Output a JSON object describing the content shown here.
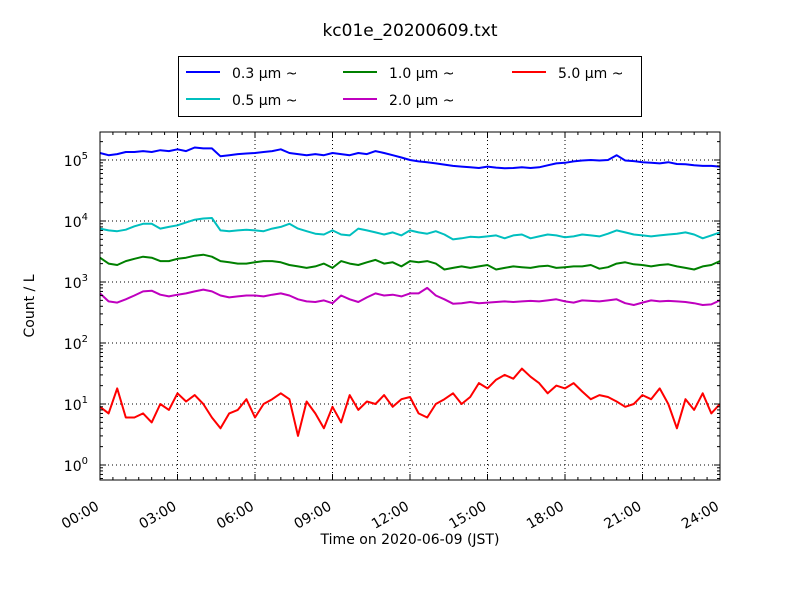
{
  "chart_data": {
    "type": "line",
    "title": "kc01e_20200609.txt",
    "xlabel": "Time on 2020-06-09 (JST)",
    "ylabel": "Count / L",
    "yscale": "log",
    "ylim": [
      0.55,
      300000
    ],
    "xlim_hours": [
      0,
      24
    ],
    "grid": true,
    "legend_position": "top-center (above plot)",
    "x_tick_labels": [
      "00:00",
      "03:00",
      "06:00",
      "09:00",
      "12:00",
      "15:00",
      "18:00",
      "21:00",
      "24:00"
    ],
    "y_tick_labels": [
      {
        "base": "10",
        "exp": "0"
      },
      {
        "base": "10",
        "exp": "1"
      },
      {
        "base": "10",
        "exp": "2"
      },
      {
        "base": "10",
        "exp": "3"
      },
      {
        "base": "10",
        "exp": "4"
      },
      {
        "base": "10",
        "exp": "5"
      }
    ],
    "x_hours_step": 0.3333,
    "series": [
      {
        "name": "0.3 μm ~",
        "color": "#0000ff",
        "values": [
          130000,
          120000,
          125000,
          135000,
          135000,
          140000,
          135000,
          145000,
          140000,
          150000,
          140000,
          160000,
          155000,
          155000,
          115000,
          120000,
          125000,
          128000,
          130000,
          135000,
          140000,
          150000,
          130000,
          125000,
          120000,
          125000,
          120000,
          130000,
          125000,
          120000,
          130000,
          125000,
          140000,
          130000,
          120000,
          110000,
          100000,
          95000,
          92000,
          88000,
          84000,
          80000,
          78000,
          76000,
          74000,
          78000,
          75000,
          73000,
          74000,
          76000,
          74000,
          76000,
          82000,
          88000,
          90000,
          95000,
          98000,
          100000,
          98000,
          100000,
          120000,
          98000,
          96000,
          92000,
          90000,
          88000,
          92000,
          86000,
          85000,
          82000,
          80000,
          80000,
          78000
        ]
      },
      {
        "name": "0.5 μm ~",
        "color": "#00bfbf",
        "values": [
          7500,
          7000,
          6800,
          7200,
          8200,
          9000,
          9000,
          7500,
          8000,
          8500,
          9500,
          10500,
          11000,
          11200,
          7000,
          6800,
          7000,
          7200,
          7000,
          6800,
          7500,
          8000,
          9000,
          7500,
          6800,
          6200,
          6000,
          7000,
          6000,
          5800,
          7500,
          7000,
          6500,
          6000,
          6500,
          5800,
          7000,
          6500,
          6200,
          6800,
          6000,
          5000,
          5200,
          5500,
          5400,
          5600,
          5800,
          5200,
          5800,
          6000,
          5200,
          5600,
          6000,
          5800,
          5400,
          5600,
          6000,
          5800,
          5600,
          6200,
          7000,
          6500,
          6000,
          5800,
          5600,
          5800,
          6000,
          6200,
          6500,
          6000,
          5200,
          5800,
          6500
        ]
      },
      {
        "name": "1.0 μm ~",
        "color": "#008000",
        "values": [
          2500,
          2000,
          1900,
          2200,
          2400,
          2600,
          2500,
          2200,
          2200,
          2400,
          2500,
          2700,
          2800,
          2600,
          2200,
          2100,
          2000,
          2000,
          2100,
          2200,
          2200,
          2100,
          1900,
          1800,
          1700,
          1800,
          2000,
          1700,
          2200,
          2000,
          1900,
          2100,
          2300,
          2000,
          2100,
          1800,
          2200,
          2100,
          2200,
          2000,
          1600,
          1700,
          1800,
          1700,
          1800,
          1900,
          1600,
          1700,
          1800,
          1750,
          1700,
          1800,
          1850,
          1700,
          1750,
          1800,
          1800,
          1900,
          1650,
          1750,
          2000,
          2100,
          1950,
          1900,
          1800,
          1900,
          1950,
          1800,
          1700,
          1600,
          1800,
          1900,
          2200
        ]
      },
      {
        "name": "2.0 μm ~",
        "color": "#bf00bf",
        "values": [
          650,
          480,
          460,
          520,
          600,
          700,
          720,
          620,
          580,
          620,
          650,
          700,
          750,
          700,
          600,
          560,
          580,
          600,
          600,
          580,
          620,
          650,
          600,
          520,
          480,
          470,
          500,
          450,
          600,
          520,
          470,
          560,
          650,
          600,
          620,
          580,
          650,
          650,
          800,
          600,
          520,
          440,
          450,
          470,
          450,
          460,
          470,
          480,
          470,
          480,
          490,
          480,
          500,
          520,
          480,
          460,
          500,
          490,
          480,
          500,
          520,
          450,
          420,
          460,
          500,
          480,
          490,
          480,
          470,
          450,
          420,
          430,
          500
        ]
      },
      {
        "name": "5.0 μm ~",
        "color": "#ff0000",
        "values": [
          9,
          7,
          18,
          6,
          6,
          7,
          5,
          10,
          8,
          15,
          11,
          14,
          10,
          6,
          4,
          7,
          8,
          12,
          6,
          10,
          12,
          15,
          12,
          3,
          11,
          7,
          4,
          9,
          5,
          14,
          8,
          11,
          10,
          14,
          9,
          12,
          13,
          7,
          6,
          10,
          12,
          15,
          10,
          13,
          22,
          18,
          25,
          30,
          26,
          38,
          28,
          22,
          15,
          20,
          18,
          22,
          16,
          12,
          14,
          13,
          11,
          9,
          10,
          14,
          12,
          18,
          10,
          4,
          12,
          8,
          15,
          7,
          10
        ]
      }
    ]
  },
  "legend": {
    "items": [
      {
        "label": "0.3 μm  ~",
        "color": "#0000ff"
      },
      {
        "label": "0.5 μm  ~",
        "color": "#00bfbf"
      },
      {
        "label": "1.0 μm  ~",
        "color": "#008000"
      },
      {
        "label": "2.0 μm  ~",
        "color": "#bf00bf"
      },
      {
        "label": "5.0 μm  ~",
        "color": "#ff0000"
      }
    ]
  }
}
